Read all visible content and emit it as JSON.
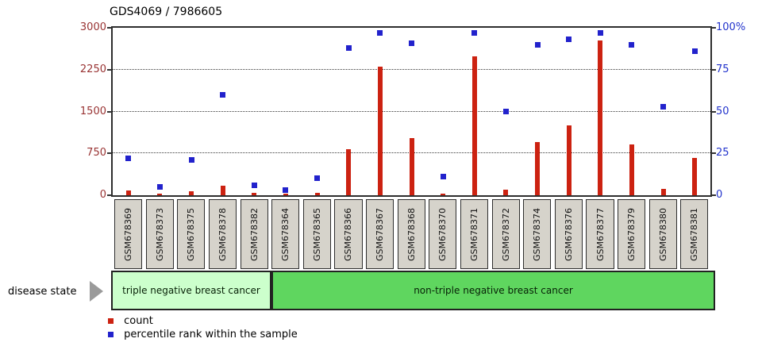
{
  "title": "GDS4069 / 7986605",
  "chart_data": {
    "type": "bar",
    "title": "GDS4069 / 7986605",
    "categories": [
      "GSM678369",
      "GSM678373",
      "GSM678375",
      "GSM678378",
      "GSM678382",
      "GSM678364",
      "GSM678365",
      "GSM678366",
      "GSM678367",
      "GSM678368",
      "GSM678370",
      "GSM678371",
      "GSM678372",
      "GSM678374",
      "GSM678376",
      "GSM678377",
      "GSM678379",
      "GSM678380",
      "GSM678381"
    ],
    "series": [
      {
        "name": "count",
        "axis": "left",
        "color": "#cc2211",
        "values": [
          80,
          30,
          70,
          175,
          45,
          15,
          40,
          820,
          2300,
          1020,
          30,
          2490,
          100,
          950,
          1250,
          2770,
          910,
          120,
          670
        ]
      },
      {
        "name": "percentile rank within the sample",
        "axis": "right",
        "color": "#2222cc",
        "values": [
          22,
          5,
          21,
          60,
          6,
          3,
          10,
          88,
          97,
          91,
          11,
          97,
          50,
          90,
          93,
          97,
          90,
          53,
          86
        ]
      }
    ],
    "left_axis": {
      "label_color": "#993333",
      "min": 0,
      "max": 3000,
      "ticks": [
        3000,
        2250,
        1500,
        750,
        0
      ],
      "tick_labels": [
        "3000",
        "2250",
        "1500",
        "750",
        "0"
      ]
    },
    "right_axis": {
      "label_color": "#2233cc",
      "min": 0,
      "max": 100,
      "ticks": [
        100,
        75,
        50,
        25,
        0
      ],
      "tick_labels": [
        "100%",
        "75",
        "50",
        "25",
        "0"
      ]
    },
    "gridlines_at_left_values": [
      2250,
      1500,
      750
    ],
    "grid": "dotted",
    "legend_position": "bottom-left"
  },
  "groups": {
    "row_label": "disease state",
    "bands": [
      {
        "label": "triple negative breast cancer",
        "sample_count": 5,
        "fill": "#ccffcc"
      },
      {
        "label": "non-triple negative breast cancer",
        "sample_count": 14,
        "fill": "#5fd65f"
      }
    ]
  },
  "legend": {
    "items": [
      {
        "label": "count",
        "color": "#cc2211"
      },
      {
        "label": "percentile rank within the sample",
        "color": "#2222cc"
      }
    ]
  }
}
